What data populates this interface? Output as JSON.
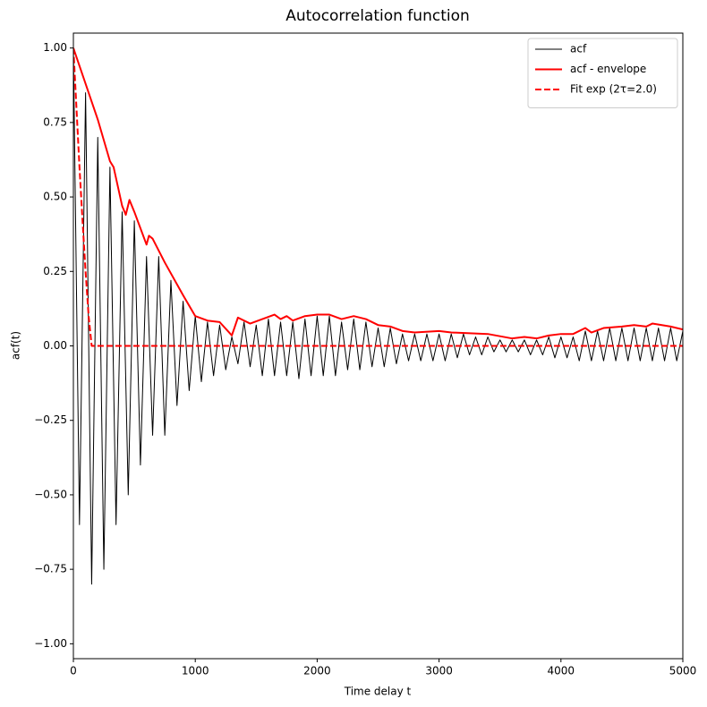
{
  "chart_data": {
    "type": "line",
    "title": "Autocorrelation function",
    "xlabel": "Time delay t",
    "ylabel": "acf(t)",
    "xlim": [
      0,
      5000
    ],
    "ylim": [
      -1.05,
      1.05
    ],
    "xticks": [
      0,
      1000,
      2000,
      3000,
      4000,
      5000
    ],
    "yticks": [
      {
        "value": -1,
        "label": "−1.00"
      },
      {
        "value": -0.75,
        "label": "−0.75"
      },
      {
        "value": -0.5,
        "label": "−0.50"
      },
      {
        "value": -0.25,
        "label": "−0.25"
      },
      {
        "value": 0,
        "label": "0.00"
      },
      {
        "value": 0.25,
        "label": "0.25"
      },
      {
        "value": 0.5,
        "label": "0.50"
      },
      {
        "value": 0.75,
        "label": "0.75"
      },
      {
        "value": 1,
        "label": "1.00"
      }
    ],
    "legend": "upper right",
    "series": [
      {
        "name": "acf",
        "color": "#000000",
        "style": "solid",
        "width": 1,
        "x": [
          0,
          50,
          100,
          150,
          200,
          250,
          300,
          350,
          400,
          450,
          500,
          550,
          600,
          650,
          700,
          750,
          800,
          850,
          900,
          950,
          1000,
          1050,
          1100,
          1150,
          1200,
          1250,
          1300,
          1350,
          1400,
          1450,
          1500,
          1550,
          1600,
          1650,
          1700,
          1750,
          1800,
          1850,
          1900,
          1950,
          2000,
          2050,
          2100,
          2150,
          2200,
          2250,
          2300,
          2350,
          2400,
          2450,
          2500,
          2550,
          2600,
          2650,
          2700,
          2750,
          2800,
          2850,
          2900,
          2950,
          3000,
          3050,
          3100,
          3150,
          3200,
          3250,
          3300,
          3350,
          3400,
          3450,
          3500,
          3550,
          3600,
          3650,
          3700,
          3750,
          3800,
          3850,
          3900,
          3950,
          4000,
          4050,
          4100,
          4150,
          4200,
          4250,
          4300,
          4350,
          4400,
          4450,
          4500,
          4550,
          4600,
          4650,
          4700,
          4750,
          4800,
          4850,
          4900,
          4950,
          5000
        ],
        "values": [
          1.0,
          -0.6,
          0.85,
          -0.8,
          0.7,
          -0.75,
          0.6,
          -0.6,
          0.45,
          -0.5,
          0.42,
          -0.4,
          0.3,
          -0.3,
          0.3,
          -0.3,
          0.22,
          -0.2,
          0.15,
          -0.15,
          0.1,
          -0.12,
          0.08,
          -0.1,
          0.07,
          -0.08,
          0.03,
          -0.06,
          0.08,
          -0.07,
          0.07,
          -0.1,
          0.09,
          -0.1,
          0.08,
          -0.1,
          0.08,
          -0.11,
          0.09,
          -0.1,
          0.1,
          -0.1,
          0.1,
          -0.1,
          0.08,
          -0.08,
          0.09,
          -0.08,
          0.08,
          -0.07,
          0.06,
          -0.07,
          0.06,
          -0.06,
          0.04,
          -0.05,
          0.04,
          -0.05,
          0.04,
          -0.05,
          0.04,
          -0.05,
          0.04,
          -0.04,
          0.04,
          -0.03,
          0.03,
          -0.03,
          0.03,
          -0.02,
          0.02,
          -0.02,
          0.02,
          -0.02,
          0.02,
          -0.03,
          0.02,
          -0.03,
          0.03,
          -0.04,
          0.03,
          -0.04,
          0.03,
          -0.05,
          0.05,
          -0.05,
          0.05,
          -0.05,
          0.06,
          -0.05,
          0.06,
          -0.05,
          0.06,
          -0.05,
          0.06,
          -0.05,
          0.06,
          -0.05,
          0.06,
          -0.05,
          0.05
        ]
      },
      {
        "name": "acf - envelope",
        "color": "#ff0000",
        "style": "solid",
        "width": 2,
        "x": [
          0,
          100,
          150,
          200,
          300,
          330,
          400,
          430,
          460,
          500,
          600,
          620,
          650,
          750,
          900,
          1000,
          1100,
          1200,
          1300,
          1350,
          1450,
          1550,
          1650,
          1700,
          1750,
          1800,
          1900,
          2000,
          2100,
          2200,
          2300,
          2400,
          2500,
          2600,
          2700,
          2800,
          3000,
          3100,
          3400,
          3600,
          3700,
          3800,
          3900,
          4000,
          4100,
          4200,
          4250,
          4350,
          4500,
          4600,
          4700,
          4750,
          4900,
          5000
        ],
        "values": [
          1.0,
          0.88,
          0.82,
          0.76,
          0.62,
          0.6,
          0.47,
          0.44,
          0.49,
          0.45,
          0.34,
          0.37,
          0.36,
          0.28,
          0.17,
          0.1,
          0.085,
          0.08,
          0.035,
          0.095,
          0.075,
          0.09,
          0.105,
          0.09,
          0.1,
          0.085,
          0.1,
          0.105,
          0.105,
          0.09,
          0.1,
          0.09,
          0.07,
          0.065,
          0.05,
          0.045,
          0.05,
          0.045,
          0.04,
          0.025,
          0.03,
          0.025,
          0.035,
          0.04,
          0.04,
          0.06,
          0.045,
          0.06,
          0.065,
          0.07,
          0.065,
          0.075,
          0.065,
          0.055
        ]
      },
      {
        "name": "Fit exp (2τ=2.0)",
        "color": "#ff0000",
        "style": "dashed",
        "width": 2,
        "x": [
          0,
          25,
          50,
          75,
          100,
          125,
          150,
          5000
        ],
        "values": [
          1.0,
          0.8,
          0.6,
          0.42,
          0.25,
          0.1,
          0.0,
          0.0
        ]
      }
    ]
  }
}
